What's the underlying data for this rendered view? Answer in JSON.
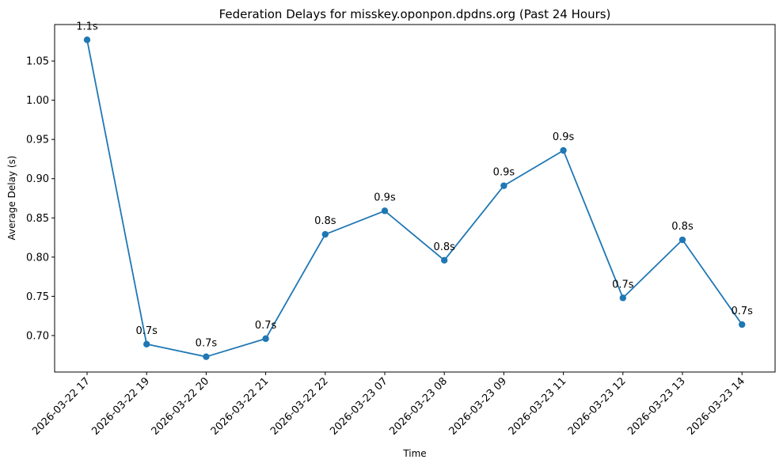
{
  "chart_data": {
    "type": "line",
    "title": "Federation Delays for misskey.oponpon.dpdns.org (Past 24 Hours)",
    "xlabel": "Time",
    "ylabel": "Average Delay (s)",
    "categories": [
      "2026-03-22 17",
      "2026-03-22 19",
      "2026-03-22 20",
      "2026-03-22 21",
      "2026-03-22 22",
      "2026-03-23 07",
      "2026-03-23 08",
      "2026-03-23 09",
      "2026-03-23 11",
      "2026-03-23 12",
      "2026-03-23 13",
      "2026-03-23 14"
    ],
    "series": [
      {
        "values": [
          1.077,
          0.689,
          0.673,
          0.696,
          0.829,
          0.859,
          0.796,
          0.891,
          0.936,
          0.748,
          0.822,
          0.714
        ],
        "color": "#1f77b4",
        "point_labels": [
          "1.1s",
          "0.7s",
          "0.7s",
          "0.7s",
          "0.8s",
          "0.9s",
          "0.8s",
          "0.9s",
          "0.9s",
          "0.7s",
          "0.8s",
          "0.7s"
        ]
      }
    ],
    "ylim": [
      0.6535,
      1.0965
    ],
    "yticks": [
      0.7,
      0.75,
      0.8,
      0.85,
      0.9,
      0.95,
      1.0,
      1.05
    ],
    "ytick_labels": [
      "0.70",
      "0.75",
      "0.80",
      "0.85",
      "0.90",
      "0.95",
      "1.00",
      "1.05"
    ],
    "grid": false,
    "legend": "none"
  }
}
